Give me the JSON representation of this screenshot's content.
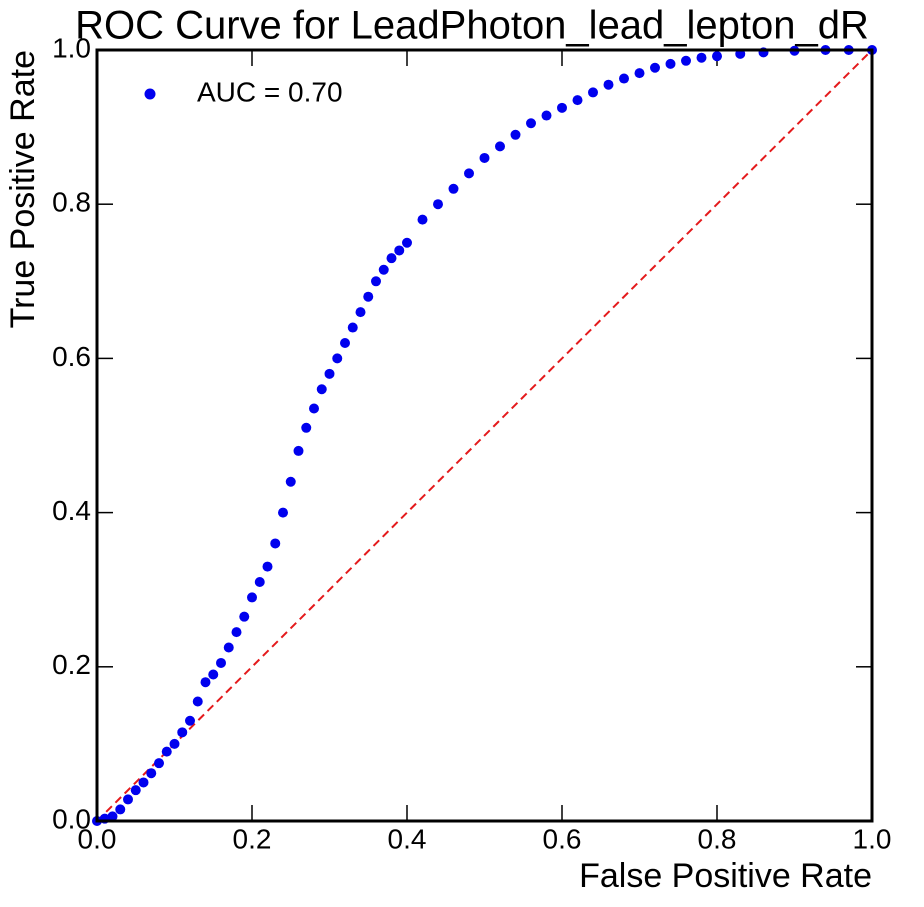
{
  "chart_data": {
    "type": "scatter",
    "title": "ROC Curve for LeadPhoton_lead_lepton_dR",
    "x_label": "False Positive Rate",
    "y_label": "True Positive Rate",
    "xlim": [
      0,
      1
    ],
    "ylim": [
      0,
      1
    ],
    "xticks": [
      {
        "value": 0,
        "label": "0.0"
      },
      0.2,
      0.4,
      0.6,
      0.8,
      {
        "value": 1,
        "label": "1.0"
      }
    ],
    "yticks": [
      {
        "value": 0,
        "label": "0.0"
      },
      0.2,
      0.4,
      0.6,
      0.8,
      {
        "value": 1,
        "label": "1.0"
      }
    ],
    "legend": "upper left",
    "diagonal": {
      "x": [
        0,
        1
      ],
      "y": [
        0,
        1
      ],
      "color": "#e41a1c",
      "dashed": true
    },
    "series": [
      {
        "name": "AUC = 0.70",
        "color": "#0000ee",
        "x": [
          0,
          0.01,
          0.02,
          0.03,
          0.04,
          0.05,
          0.06,
          0.07,
          0.08,
          0.09,
          0.1,
          0.11,
          0.12,
          0.13,
          0.14,
          0.15,
          0.16,
          0.17,
          0.18,
          0.19,
          0.2,
          0.21,
          0.22,
          0.23,
          0.24,
          0.25,
          0.26,
          0.27,
          0.28,
          0.29,
          0.3,
          0.31,
          0.32,
          0.33,
          0.34,
          0.35,
          0.36,
          0.37,
          0.38,
          0.39,
          0.4,
          0.42,
          0.44,
          0.46,
          0.48,
          0.5,
          0.52,
          0.54,
          0.56,
          0.58,
          0.6,
          0.62,
          0.64,
          0.66,
          0.68,
          0.7,
          0.72,
          0.74,
          0.76,
          0.78,
          0.8,
          0.83,
          0.86,
          0.9,
          0.94,
          0.97,
          1
        ],
        "y": [
          0,
          0.003,
          0.006,
          0.015,
          0.028,
          0.04,
          0.05,
          0.062,
          0.075,
          0.09,
          0.1,
          0.115,
          0.13,
          0.155,
          0.18,
          0.19,
          0.205,
          0.225,
          0.245,
          0.265,
          0.29,
          0.31,
          0.33,
          0.36,
          0.4,
          0.44,
          0.48,
          0.51,
          0.535,
          0.56,
          0.58,
          0.6,
          0.62,
          0.64,
          0.66,
          0.68,
          0.7,
          0.715,
          0.73,
          0.74,
          0.75,
          0.78,
          0.8,
          0.82,
          0.84,
          0.86,
          0.875,
          0.89,
          0.905,
          0.915,
          0.925,
          0.935,
          0.945,
          0.955,
          0.963,
          0.97,
          0.977,
          0.982,
          0.986,
          0.99,
          0.992,
          0.995,
          0.997,
          0.999,
          1,
          1,
          1
        ]
      }
    ]
  }
}
